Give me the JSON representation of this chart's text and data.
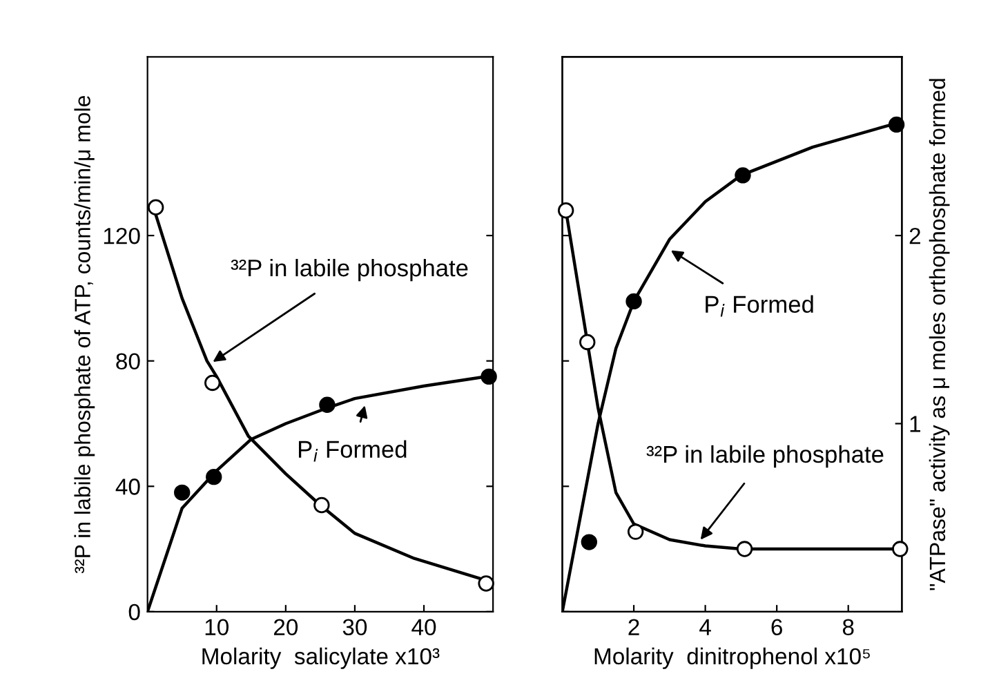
{
  "chart_data": [
    {
      "type": "scatter",
      "xlabel": "Molarity  salicylate x10³",
      "ylabel": "³²P in labile phosphate of ATP, counts/min/μ mole",
      "xlim": [
        0,
        50
      ],
      "xticks": [
        10,
        20,
        30,
        40
      ],
      "ylim": [
        0,
        177
      ],
      "yticks": [
        0,
        40,
        80,
        120
      ],
      "grid": false,
      "series": [
        {
          "color": "#ffffff",
          "marker": "circle",
          "x": [
            1.2,
            9.4,
            25.2,
            49
          ],
          "values": [
            129,
            73,
            34,
            9
          ]
        },
        {
          "color": "#000000",
          "marker": "circle",
          "x": [
            5,
            9.6,
            26,
            49.4
          ],
          "values": [
            38,
            43,
            66,
            75
          ]
        },
        {
          "type": "line",
          "color": "#000000",
          "x": [
            1,
            5,
            8.6,
            10,
            14.6,
            20,
            25,
            30,
            38.6,
            49
          ],
          "values": [
            128,
            100,
            80,
            75,
            56,
            44,
            34,
            25,
            17,
            10
          ]
        },
        {
          "type": "line",
          "color": "#000000",
          "x": [
            0,
            5,
            10,
            15,
            20,
            26,
            30,
            40,
            49
          ],
          "values": [
            0,
            33,
            45,
            55,
            60,
            65,
            68,
            72,
            75
          ]
        }
      ],
      "annotations": [
        {
          "text": "³²P in labile phosphate",
          "x": 9,
          "y": 79
        },
        {
          "text": "P$_{i}$ Formed",
          "x": 31.6,
          "y": 67
        }
      ]
    },
    {
      "type": "scatter",
      "xlabel": "Molarity  dinitrophenol x10⁵",
      "y2label": "\"ATPase\" activity as μ moles orthophosphate formed",
      "xlim": [
        0,
        9.5
      ],
      "xticks": [
        2,
        4,
        6,
        8
      ],
      "ylim": [
        0,
        177
      ],
      "y2lim": [
        0,
        2.95
      ],
      "y2ticks": [
        1,
        2
      ],
      "grid": false,
      "tick_labels": [
        "x",
        "y2"
      ],
      "series": [
        {
          "color": "#ffffff",
          "marker": "circle",
          "x": [
            0.1,
            0.7,
            2.05,
            5.1,
            9.45
          ],
          "values": [
            128,
            86,
            25.5,
            20,
            20
          ]
        },
        {
          "color": "#000000",
          "marker": "circle",
          "axis": "y2",
          "x": [
            0.75,
            2,
            5.05,
            9.35
          ],
          "values": [
            0.37,
            1.65,
            2.32,
            2.59
          ]
        },
        {
          "type": "line",
          "color": "#000000",
          "x": [
            0.1,
            0.7,
            1,
            1.5,
            2,
            3,
            4,
            5,
            9.5
          ],
          "values": [
            128,
            86,
            65,
            38,
            28,
            23,
            21,
            20,
            20
          ]
        },
        {
          "type": "line",
          "color": "#000000",
          "axis": "y2",
          "x": [
            0,
            0.5,
            1,
            1.5,
            2,
            3,
            4,
            5,
            7,
            9.4
          ],
          "values": [
            0,
            0.5,
            1,
            1.4,
            1.65,
            1.98,
            2.18,
            2.32,
            2.47,
            2.6
          ]
        }
      ],
      "annotations": [
        "P$_{i}$ Formed",
        {
          "text": "³²P in labile phosphate",
          "x": 3.8,
          "y": 22
        }
      ]
    }
  ]
}
